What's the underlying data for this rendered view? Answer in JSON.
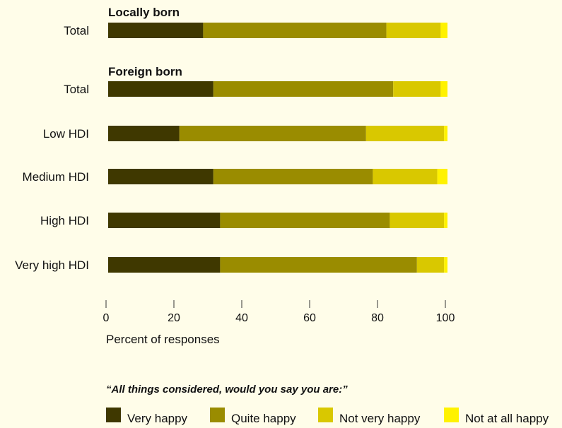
{
  "chart_data": {
    "type": "bar",
    "orientation": "horizontal",
    "stacked": true,
    "groups": [
      {
        "title": "Locally born",
        "categories": [
          "Total"
        ]
      },
      {
        "title": "Foreign born",
        "categories": [
          "Total",
          "Low HDI",
          "Medium HDI",
          "High HDI",
          "Very high HDI"
        ]
      }
    ],
    "series": [
      {
        "name": "Very happy",
        "color": "#3f3800",
        "values": [
          28,
          31,
          21,
          31,
          33,
          33
        ]
      },
      {
        "name": "Quite happy",
        "color": "#9a8c00",
        "values": [
          54,
          53,
          55,
          47,
          50,
          58
        ]
      },
      {
        "name": "Not very happy",
        "color": "#d9c800",
        "values": [
          16,
          14,
          23,
          19,
          16,
          8
        ]
      },
      {
        "name": "Not at all happy",
        "color": "#fff200",
        "values": [
          2,
          2,
          1,
          3,
          1,
          1
        ]
      }
    ],
    "xlabel": "Percent of responses",
    "xlim": [
      0,
      100
    ],
    "xticks": [
      0,
      20,
      40,
      60,
      80,
      100
    ],
    "legend_title": "“All things considered, would you say you are:”",
    "legend_position": "bottom",
    "grid": false
  }
}
